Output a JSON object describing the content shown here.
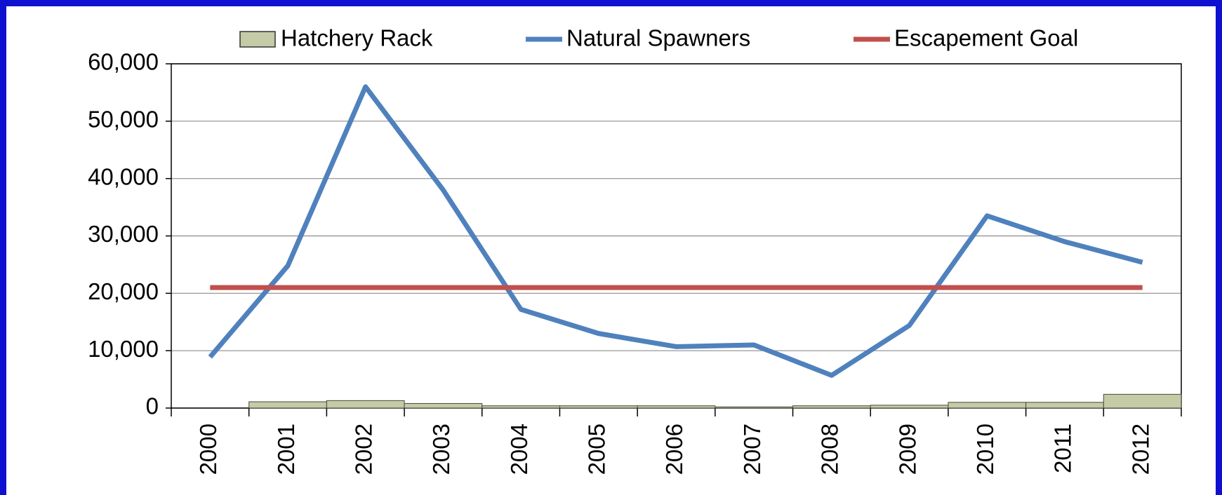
{
  "chart_data": {
    "type": "bar_line",
    "categories": [
      "2000",
      "2001",
      "2002",
      "2003",
      "2004",
      "2005",
      "2006",
      "2007",
      "2008",
      "2009",
      "2010",
      "2011",
      "2012"
    ],
    "series": [
      {
        "name": "Hatchery Rack",
        "type": "bar",
        "color": "#c4cba6",
        "values": [
          0,
          1100,
          1300,
          800,
          400,
          400,
          400,
          200,
          400,
          500,
          1000,
          1000,
          2400
        ]
      },
      {
        "name": "Natural Spawners",
        "type": "line",
        "color": "#4f81bd",
        "values": [
          8900,
          24800,
          56000,
          38000,
          17200,
          13000,
          10700,
          11000,
          5700,
          14400,
          33500,
          29000,
          25400
        ]
      },
      {
        "name": "Escapement Goal",
        "type": "line",
        "color": "#c0504d",
        "values": [
          21000,
          21000,
          21000,
          21000,
          21000,
          21000,
          21000,
          21000,
          21000,
          21000,
          21000,
          21000,
          21000
        ]
      }
    ],
    "ylim": [
      0,
      60000
    ],
    "yticks": [
      0,
      {
        "value": 10000,
        "label": "10,000"
      },
      {
        "value": 20000,
        "label": "20,000"
      },
      {
        "value": 30000,
        "label": "30,000"
      },
      {
        "value": 40000,
        "label": "40,000"
      },
      {
        "value": 50000,
        "label": "50,000"
      },
      {
        "value": 60000,
        "label": "60,000"
      }
    ],
    "grid": true,
    "legend": "top"
  }
}
